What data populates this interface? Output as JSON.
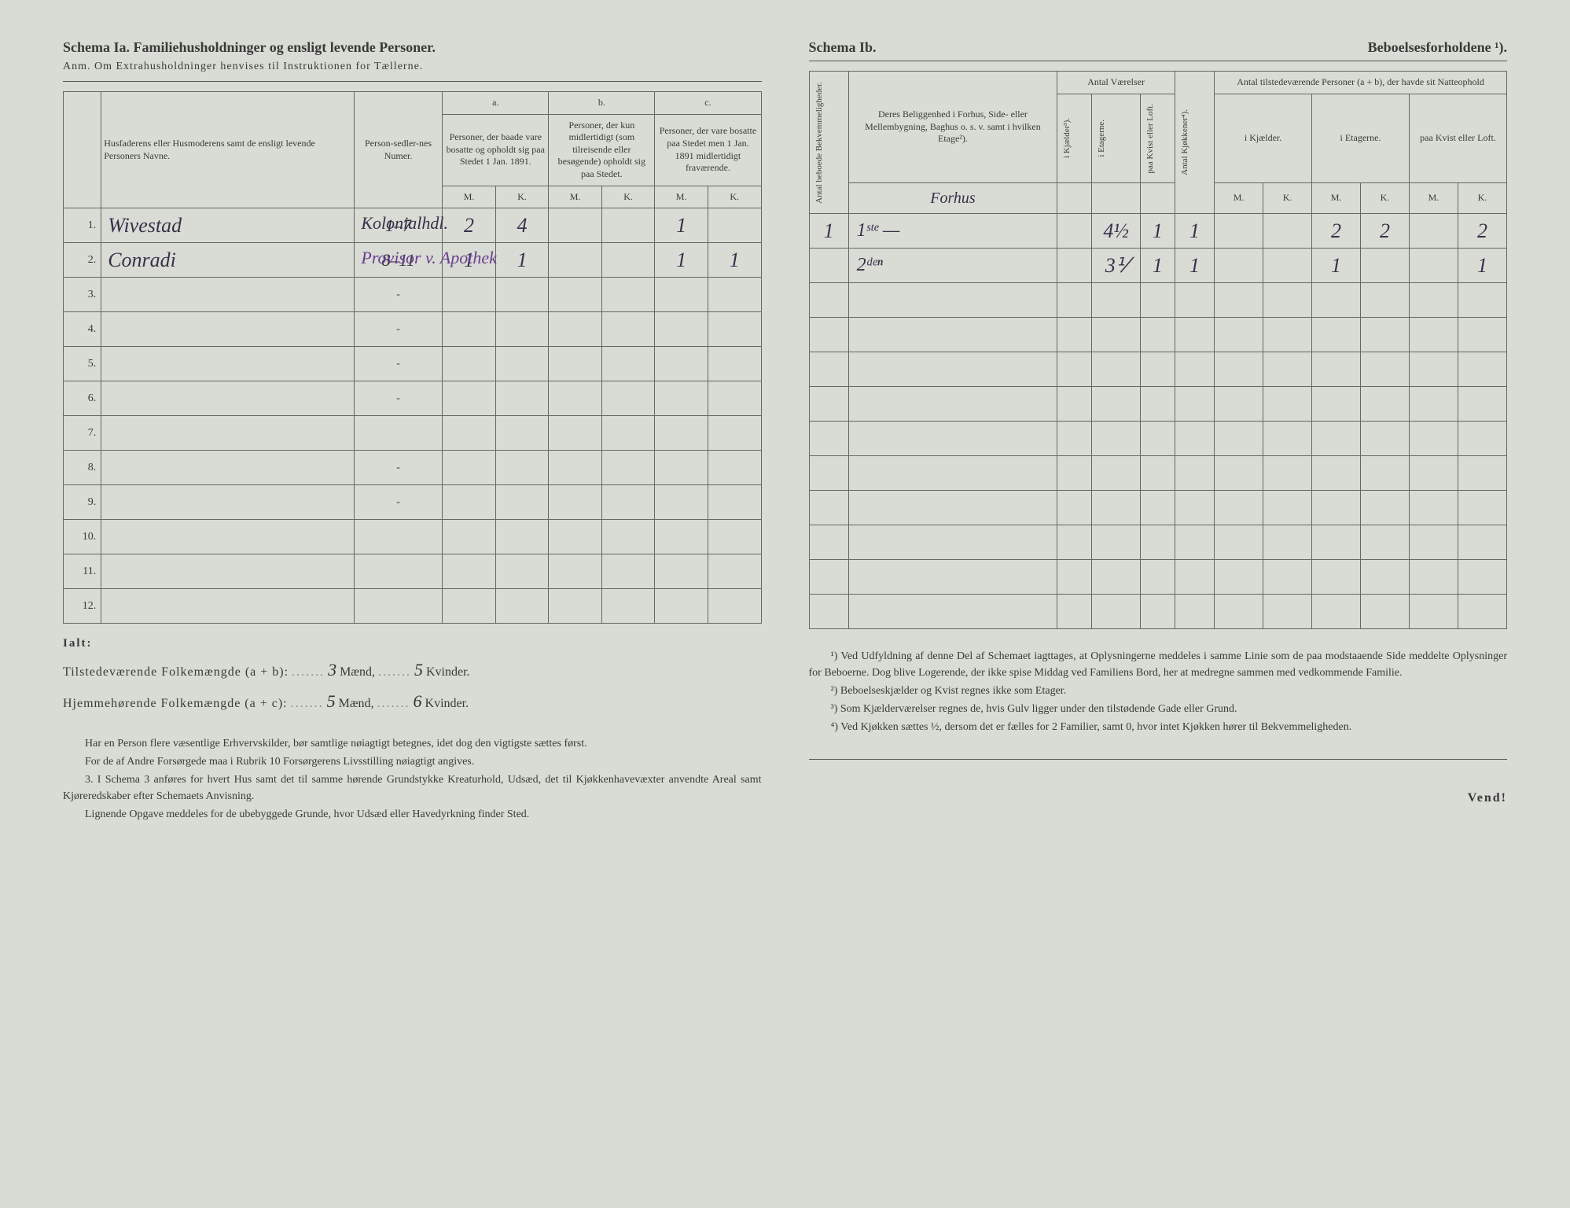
{
  "left": {
    "title": "Schema Ia. Familiehusholdninger og ensligt levende Personer.",
    "subtitle": "Anm. Om Extrahusholdninger henvises til Instruktionen for Tællerne.",
    "header": {
      "col_name": "Husfaderens eller Husmoderens samt de ensligt levende Personers Navne.",
      "col_numer": "Person-sedler-nes Numer.",
      "sec_a": "a.",
      "sec_a_desc": "Personer, der baade vare bosatte og opholdt sig paa Stedet 1 Jan. 1891.",
      "sec_b": "b.",
      "sec_b_desc": "Personer, der kun midlertidigt (som tilreisende eller besøgende) opholdt sig paa Stedet.",
      "sec_c": "c.",
      "sec_c_desc": "Personer, der vare bosatte paa Stedet men 1 Jan. 1891 midlertidigt fraværende.",
      "M": "M.",
      "K": "K."
    },
    "rows": [
      {
        "n": "1.",
        "name": "Wivestad",
        "numer": "1–7",
        "aM": "2",
        "aK": "4",
        "bM": "",
        "bK": "",
        "cM": "1",
        "cK": "",
        "note": "Kolonialhdl."
      },
      {
        "n": "2.",
        "name": "Conradi",
        "numer": "8–11",
        "aM": "1",
        "aK": "1",
        "bM": "",
        "bK": "",
        "cM": "1",
        "cK": "1",
        "note": "Provisor v. Apothek"
      },
      {
        "n": "3.",
        "name": "",
        "numer": "-",
        "aM": "",
        "aK": "",
        "bM": "",
        "bK": "",
        "cM": "",
        "cK": "",
        "note": ""
      },
      {
        "n": "4.",
        "name": "",
        "numer": "-",
        "aM": "",
        "aK": "",
        "bM": "",
        "bK": "",
        "cM": "",
        "cK": "",
        "note": ""
      },
      {
        "n": "5.",
        "name": "",
        "numer": "-",
        "aM": "",
        "aK": "",
        "bM": "",
        "bK": "",
        "cM": "",
        "cK": "",
        "note": ""
      },
      {
        "n": "6.",
        "name": "",
        "numer": "-",
        "aM": "",
        "aK": "",
        "bM": "",
        "bK": "",
        "cM": "",
        "cK": "",
        "note": ""
      },
      {
        "n": "7.",
        "name": "",
        "numer": "",
        "aM": "",
        "aK": "",
        "bM": "",
        "bK": "",
        "cM": "",
        "cK": "",
        "note": ""
      },
      {
        "n": "8.",
        "name": "",
        "numer": "-",
        "aM": "",
        "aK": "",
        "bM": "",
        "bK": "",
        "cM": "",
        "cK": "",
        "note": ""
      },
      {
        "n": "9.",
        "name": "",
        "numer": "-",
        "aM": "",
        "aK": "",
        "bM": "",
        "bK": "",
        "cM": "",
        "cK": "",
        "note": ""
      },
      {
        "n": "10.",
        "name": "",
        "numer": "",
        "aM": "",
        "aK": "",
        "bM": "",
        "bK": "",
        "cM": "",
        "cK": "",
        "note": ""
      },
      {
        "n": "11.",
        "name": "",
        "numer": "",
        "aM": "",
        "aK": "",
        "bM": "",
        "bK": "",
        "cM": "",
        "cK": "",
        "note": ""
      },
      {
        "n": "12.",
        "name": "",
        "numer": "",
        "aM": "",
        "aK": "",
        "bM": "",
        "bK": "",
        "cM": "",
        "cK": "",
        "note": ""
      }
    ],
    "totals": {
      "ialt": "Ialt:",
      "line1_label": "Tilstedeværende Folkemængde (a + b):",
      "line1_m": "3",
      "line1_k": "5",
      "line2_label": "Hjemmehørende Folkemængde (a + c):",
      "line2_m": "5",
      "line2_k": "6",
      "maend": "Mænd,",
      "kvinder": "Kvinder."
    },
    "footnotes": {
      "p1": "Har en Person flere væsentlige Erhvervskilder, bør samtlige nøiagtigt betegnes, idet dog den vigtigste sættes først.",
      "p2": "For de af Andre Forsørgede maa i Rubrik 10 Forsørgerens Livsstilling nøiagtigt angives.",
      "p3_num": "3.",
      "p3": "I Schema 3 anføres for hvert Hus samt det til samme hørende Grundstykke Kreaturhold, Udsæd, det til Kjøkkenhavevæxter anvendte Areal samt Kjøreredskaber efter Schemaets Anvisning.",
      "p4": "Lignende Opgave meddeles for de ubebyggede Grunde, hvor Udsæd eller Havedyrkning finder Sted."
    }
  },
  "right": {
    "title_a": "Schema Ib.",
    "title_b": "Beboelsesforholdene ¹).",
    "header": {
      "col1": "Antal beboede Bekvemmeligheder.",
      "col2": "Deres Beliggenhed i Forhus, Side- eller Mellembygning, Baghus o. s. v. samt i hvilken Etage²).",
      "forhus": "Forhus",
      "antal_vaerelser": "Antal Værelser",
      "v1": "i Kjælder³).",
      "v2": "i Etagerne.",
      "v3": "paa Kvist eller Loft.",
      "kjok": "Antal Kjøkkener⁴).",
      "present": "Antal tilstedeværende Personer (a + b), der havde sit Natteophold",
      "p1": "i Kjælder.",
      "p2": "i Etagerne.",
      "p3": "paa Kvist eller Loft.",
      "M": "M.",
      "K": "K."
    },
    "rows": [
      {
        "bekv": "1",
        "belig": "1ˢᵗᵉ —",
        "vk": "",
        "ve": "4½",
        "vl": "1",
        "kjok": "1",
        "pkM": "",
        "pkK": "",
        "peM": "2",
        "peK": "2",
        "plM": "",
        "plK": "2"
      },
      {
        "bekv": "",
        "belig": "2ᵈᵉⁿ",
        "vk": "",
        "ve": "3⅟",
        "vl": "1",
        "kjok": "1",
        "pkM": "",
        "pkK": "",
        "peM": "1",
        "peK": "",
        "plM": "",
        "plK": "1"
      },
      {
        "bekv": "",
        "belig": "",
        "vk": "",
        "ve": "",
        "vl": "",
        "kjok": "",
        "pkM": "",
        "pkK": "",
        "peM": "",
        "peK": "",
        "plM": "",
        "plK": ""
      },
      {
        "bekv": "",
        "belig": "",
        "vk": "",
        "ve": "",
        "vl": "",
        "kjok": "",
        "pkM": "",
        "pkK": "",
        "peM": "",
        "peK": "",
        "plM": "",
        "plK": ""
      },
      {
        "bekv": "",
        "belig": "",
        "vk": "",
        "ve": "",
        "vl": "",
        "kjok": "",
        "pkM": "",
        "pkK": "",
        "peM": "",
        "peK": "",
        "plM": "",
        "plK": ""
      },
      {
        "bekv": "",
        "belig": "",
        "vk": "",
        "ve": "",
        "vl": "",
        "kjok": "",
        "pkM": "",
        "pkK": "",
        "peM": "",
        "peK": "",
        "plM": "",
        "plK": ""
      },
      {
        "bekv": "",
        "belig": "",
        "vk": "",
        "ve": "",
        "vl": "",
        "kjok": "",
        "pkM": "",
        "pkK": "",
        "peM": "",
        "peK": "",
        "plM": "",
        "plK": ""
      },
      {
        "bekv": "",
        "belig": "",
        "vk": "",
        "ve": "",
        "vl": "",
        "kjok": "",
        "pkM": "",
        "pkK": "",
        "peM": "",
        "peK": "",
        "plM": "",
        "plK": ""
      },
      {
        "bekv": "",
        "belig": "",
        "vk": "",
        "ve": "",
        "vl": "",
        "kjok": "",
        "pkM": "",
        "pkK": "",
        "peM": "",
        "peK": "",
        "plM": "",
        "plK": ""
      },
      {
        "bekv": "",
        "belig": "",
        "vk": "",
        "ve": "",
        "vl": "",
        "kjok": "",
        "pkM": "",
        "pkK": "",
        "peM": "",
        "peK": "",
        "plM": "",
        "plK": ""
      },
      {
        "bekv": "",
        "belig": "",
        "vk": "",
        "ve": "",
        "vl": "",
        "kjok": "",
        "pkM": "",
        "pkK": "",
        "peM": "",
        "peK": "",
        "plM": "",
        "plK": ""
      },
      {
        "bekv": "",
        "belig": "",
        "vk": "",
        "ve": "",
        "vl": "",
        "kjok": "",
        "pkM": "",
        "pkK": "",
        "peM": "",
        "peK": "",
        "plM": "",
        "plK": ""
      }
    ],
    "footnotes": {
      "n1": "¹) Ved Udfyldning af denne Del af Schemaet iagttages, at Oplysningerne meddeles i samme Linie som de paa modstaaende Side meddelte Oplysninger for Beboerne. Dog blive Logerende, der ikke spise Middag ved Familiens Bord, her at medregne sammen med vedkommende Familie.",
      "n2": "²) Beboelseskjælder og Kvist regnes ikke som Etager.",
      "n3": "³) Som Kjælderværelser regnes de, hvis Gulv ligger under den tilstødende Gade eller Grund.",
      "n4": "⁴) Ved Kjøkken sættes ½, dersom det er fælles for 2 Familier, samt 0, hvor intet Kjøkken hører til Bekvemmeligheden."
    },
    "vend": "Vend!"
  }
}
